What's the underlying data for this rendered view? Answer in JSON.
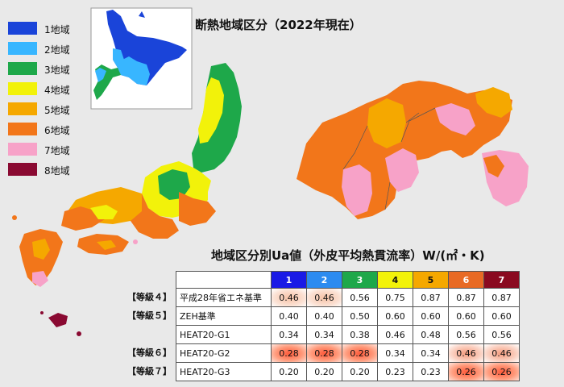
{
  "title": "断熱地域区分（2022年現在）",
  "table_title": "地域区分別Ua値（外皮平均熱貫流率）W/(㎡・K)",
  "legend": [
    {
      "label": "1地域",
      "color": "#1a44d9"
    },
    {
      "label": "2地域",
      "color": "#38b6ff"
    },
    {
      "label": "3地域",
      "color": "#1ea84a"
    },
    {
      "label": "4地域",
      "color": "#f2f20a"
    },
    {
      "label": "5地域",
      "color": "#f5a800"
    },
    {
      "label": "6地域",
      "color": "#f2761a"
    },
    {
      "label": "7地域",
      "color": "#f7a2c8"
    },
    {
      "label": "8地域",
      "color": "#8a0a32"
    }
  ],
  "table": {
    "headers": [
      "1",
      "2",
      "3",
      "4",
      "5",
      "6",
      "7"
    ],
    "header_colors": [
      "#1a1ae6",
      "#2c8bf0",
      "#1ea84a",
      "#f2f20a",
      "#f5a800",
      "#e86a24",
      "#8a0a20"
    ],
    "header_text_colors": [
      "#ffffff",
      "#ffffff",
      "#ffffff",
      "#111111",
      "#111111",
      "#ffffff",
      "#ffffff"
    ],
    "rows": [
      {
        "grade": "【等級４】",
        "name": "平成28年省エネ基準",
        "values": [
          "0.46",
          "0.46",
          "0.56",
          "0.75",
          "0.87",
          "0.87",
          "0.87"
        ],
        "highlight": [
          "soft",
          "soft",
          "",
          "",
          "",
          "",
          ""
        ]
      },
      {
        "grade": "【等級５】",
        "name": "ZEH基準",
        "values": [
          "0.40",
          "0.40",
          "0.50",
          "0.60",
          "0.60",
          "0.60",
          "0.60"
        ],
        "highlight": [
          "",
          "",
          "",
          "",
          "",
          "",
          ""
        ]
      },
      {
        "grade": "",
        "name": "HEAT20-G1",
        "values": [
          "0.34",
          "0.34",
          "0.38",
          "0.46",
          "0.48",
          "0.56",
          "0.56"
        ],
        "highlight": [
          "",
          "",
          "",
          "",
          "",
          "",
          ""
        ]
      },
      {
        "grade": "【等級６】",
        "name": "HEAT20-G2",
        "values": [
          "0.28",
          "0.28",
          "0.28",
          "0.34",
          "0.34",
          "0.46",
          "0.46"
        ],
        "highlight": [
          "strong",
          "strong",
          "strong",
          "",
          "",
          "mid",
          "mid"
        ]
      },
      {
        "grade": "【等級７】",
        "name": "HEAT20-G3",
        "values": [
          "0.20",
          "0.20",
          "0.20",
          "0.23",
          "0.23",
          "0.26",
          "0.26"
        ],
        "highlight": [
          "",
          "",
          "",
          "",
          "",
          "strong",
          "strong"
        ]
      }
    ]
  }
}
